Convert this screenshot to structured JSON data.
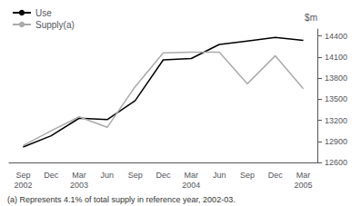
{
  "chart_data": {
    "type": "line",
    "ylabel": "$m",
    "annotations": [
      "(a) Represents 4.1% of total supply in reference year, 2002-03."
    ],
    "categories": [
      "Sep\n2002",
      "Dec",
      "Mar\n2003",
      "Jun",
      "Sep",
      "Dec",
      "Mar\n2004",
      "Jun",
      "Sep",
      "Dec",
      "Mar\n2005"
    ],
    "series": [
      {
        "name": "Use",
        "color": "#000000",
        "values": [
          12820,
          12980,
          13230,
          13210,
          13480,
          14060,
          14080,
          14280,
          14330,
          14380,
          14340
        ]
      },
      {
        "name": "Supply(a)",
        "color": "#aaaaaa",
        "values": [
          12840,
          13050,
          13250,
          13100,
          13680,
          14160,
          14170,
          14170,
          13720,
          14120,
          13650
        ]
      }
    ],
    "ylim": [
      12600,
      14500
    ],
    "yticks": [
      12600,
      12900,
      13200,
      13500,
      13800,
      14100,
      14400
    ],
    "grid": false,
    "legend": "upper left"
  }
}
